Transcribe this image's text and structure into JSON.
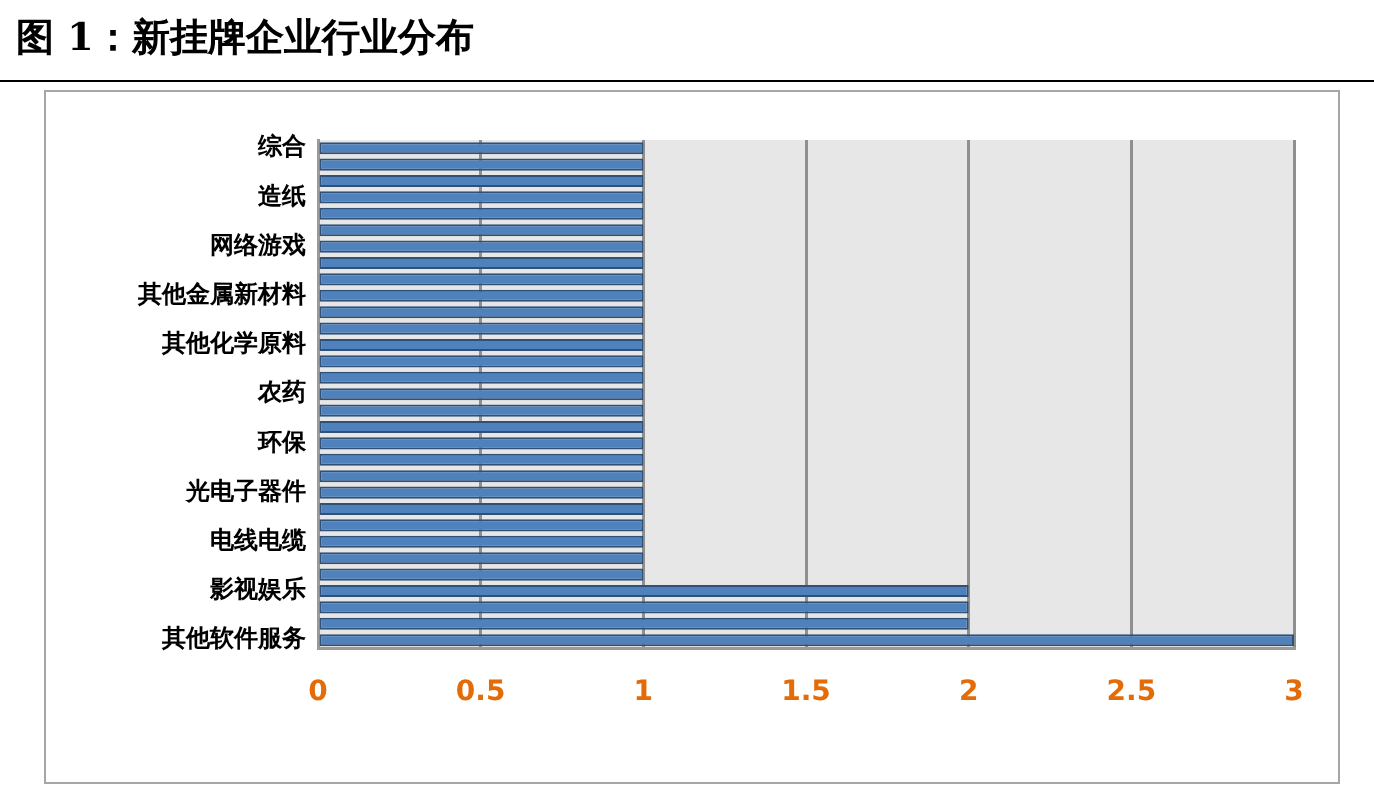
{
  "chart_data": {
    "type": "bar",
    "orientation": "horizontal",
    "title": "图 1：新挂牌企业行业分布",
    "categories": [
      "综合",
      null,
      null,
      "造纸",
      null,
      null,
      "网络游戏",
      null,
      null,
      "其他金属新材料",
      null,
      null,
      "其他化学原料",
      null,
      null,
      "农药",
      null,
      null,
      "环保",
      null,
      null,
      "光电子器件",
      null,
      null,
      "电线电缆",
      null,
      null,
      "影视娱乐",
      null,
      null,
      "其他软件服务"
    ],
    "series": [
      {
        "color": "#4f81bd",
        "values": [
          1,
          1,
          1,
          1,
          1,
          1,
          1,
          1,
          1,
          1,
          1,
          1,
          1,
          1,
          1,
          1,
          1,
          1,
          1,
          1,
          1,
          1,
          1,
          1,
          1,
          1,
          1,
          2,
          2,
          2,
          3
        ]
      }
    ],
    "xlim": [
      0,
      3
    ],
    "xticks": [
      0,
      0.5,
      1,
      1.5,
      2,
      2.5,
      3
    ],
    "grid": "x"
  }
}
